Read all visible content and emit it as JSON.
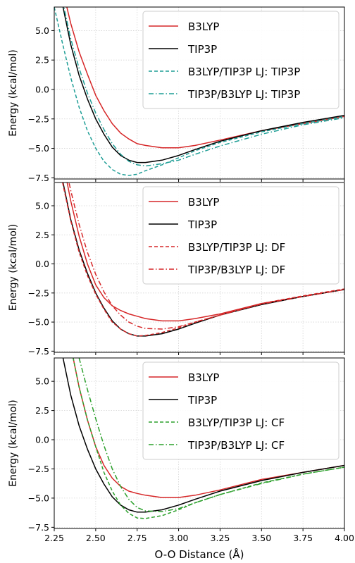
{
  "chart_data": [
    {
      "type": "line",
      "ylabel": "Energy (kcal/mol)",
      "xlabel": "",
      "xlim": [
        2.25,
        4.0
      ],
      "ylim": [
        -7.6,
        7.0
      ],
      "grid": true,
      "legend_position": "top-right",
      "yticks": [
        -7.5,
        -5.0,
        -2.5,
        0.0,
        2.5,
        5.0
      ],
      "ytick_labels": [
        "−7.5",
        "−5.0",
        "−2.5",
        "0.0",
        "2.5",
        "5.0"
      ],
      "series": [
        {
          "name": "B3LYP",
          "color": "#d62728",
          "dash": "solid",
          "x": [
            2.3,
            2.35,
            2.4,
            2.45,
            2.5,
            2.55,
            2.6,
            2.65,
            2.7,
            2.75,
            2.8,
            2.9,
            3.0,
            3.1,
            3.25,
            3.5,
            3.75,
            4.0
          ],
          "y": [
            8.5,
            5.6,
            3.2,
            1.3,
            -0.5,
            -1.8,
            -2.9,
            -3.7,
            -4.2,
            -4.6,
            -4.75,
            -4.95,
            -4.95,
            -4.75,
            -4.3,
            -3.5,
            -2.9,
            -2.3
          ]
        },
        {
          "name": "TIP3P",
          "color": "#000000",
          "dash": "solid",
          "x": [
            2.3,
            2.35,
            2.4,
            2.45,
            2.5,
            2.55,
            2.6,
            2.65,
            2.7,
            2.75,
            2.8,
            2.9,
            3.0,
            3.1,
            3.25,
            3.5,
            3.75,
            4.0
          ],
          "y": [
            7.2,
            3.8,
            1.2,
            -0.8,
            -2.5,
            -3.8,
            -4.9,
            -5.6,
            -6.0,
            -6.2,
            -6.2,
            -6.0,
            -5.6,
            -5.1,
            -4.4,
            -3.5,
            -2.8,
            -2.2
          ]
        },
        {
          "name": "B3LYP/TIP3P LJ: TIP3P",
          "color": "#1f9e96",
          "dash": "dashed",
          "x": [
            2.25,
            2.3,
            2.35,
            2.4,
            2.45,
            2.5,
            2.55,
            2.6,
            2.65,
            2.7,
            2.75,
            2.8,
            2.9,
            3.0,
            3.1,
            3.25,
            3.5,
            3.75,
            4.0
          ],
          "y": [
            7.0,
            3.9,
            1.0,
            -1.5,
            -3.5,
            -5.0,
            -6.1,
            -6.8,
            -7.2,
            -7.3,
            -7.2,
            -6.9,
            -6.4,
            -5.8,
            -5.2,
            -4.5,
            -3.6,
            -2.9,
            -2.3
          ]
        },
        {
          "name": "TIP3P/B3LYP LJ: TIP3P",
          "color": "#1f9e96",
          "dash": "dashdot",
          "x": [
            2.3,
            2.35,
            2.4,
            2.45,
            2.5,
            2.55,
            2.6,
            2.65,
            2.7,
            2.75,
            2.8,
            2.9,
            3.0,
            3.1,
            3.25,
            3.5,
            3.75,
            4.0
          ],
          "y": [
            7.5,
            4.3,
            1.8,
            -0.3,
            -2.0,
            -3.4,
            -4.6,
            -5.5,
            -6.1,
            -6.4,
            -6.5,
            -6.3,
            -6.0,
            -5.5,
            -4.8,
            -3.8,
            -3.0,
            -2.4
          ]
        }
      ]
    },
    {
      "type": "line",
      "ylabel": "Energy (kcal/mol)",
      "xlabel": "",
      "xlim": [
        2.25,
        4.0
      ],
      "ylim": [
        -7.6,
        7.0
      ],
      "grid": true,
      "legend_position": "top-right",
      "yticks": [
        -7.5,
        -5.0,
        -2.5,
        0.0,
        2.5,
        5.0
      ],
      "ytick_labels": [
        "−7.5",
        "−5.0",
        "−2.5",
        "0.0",
        "2.5",
        "5.0"
      ],
      "series": [
        {
          "name": "B3LYP",
          "color": "#d62728",
          "dash": "solid",
          "x": [
            2.3,
            2.35,
            2.4,
            2.45,
            2.5,
            2.55,
            2.6,
            2.65,
            2.7,
            2.75,
            2.8,
            2.9,
            3.0,
            3.1,
            3.25,
            3.5,
            3.75,
            4.0
          ],
          "y": [
            9.0,
            5.4,
            2.4,
            0.0,
            -1.8,
            -2.9,
            -3.6,
            -4.0,
            -4.3,
            -4.5,
            -4.7,
            -4.9,
            -4.9,
            -4.7,
            -4.3,
            -3.4,
            -2.8,
            -2.2
          ]
        },
        {
          "name": "TIP3P",
          "color": "#000000",
          "dash": "solid",
          "x": [
            2.3,
            2.35,
            2.4,
            2.45,
            2.5,
            2.55,
            2.6,
            2.65,
            2.7,
            2.75,
            2.8,
            2.9,
            3.0,
            3.1,
            3.25,
            3.5,
            3.75,
            4.0
          ],
          "y": [
            7.2,
            3.8,
            1.2,
            -0.8,
            -2.5,
            -3.8,
            -4.9,
            -5.6,
            -6.0,
            -6.2,
            -6.2,
            -6.0,
            -5.6,
            -5.1,
            -4.4,
            -3.5,
            -2.8,
            -2.2
          ]
        },
        {
          "name": "B3LYP/TIP3P LJ: DF",
          "color": "#d62728",
          "dash": "dashed",
          "x": [
            2.3,
            2.35,
            2.4,
            2.45,
            2.5,
            2.55,
            2.6,
            2.65,
            2.7,
            2.75,
            2.8,
            2.9,
            3.0,
            3.1,
            3.25,
            3.5,
            3.75,
            4.0
          ],
          "y": [
            7.0,
            3.7,
            1.0,
            -1.0,
            -2.6,
            -3.9,
            -5.0,
            -5.6,
            -6.0,
            -6.2,
            -6.15,
            -5.9,
            -5.5,
            -5.0,
            -4.4,
            -3.4,
            -2.75,
            -2.15
          ]
        },
        {
          "name": "TIP3P/B3LYP LJ: DF",
          "color": "#d62728",
          "dash": "dashdot",
          "x": [
            2.3,
            2.35,
            2.4,
            2.45,
            2.5,
            2.55,
            2.6,
            2.65,
            2.7,
            2.75,
            2.8,
            2.9,
            3.0,
            3.1,
            3.25,
            3.5,
            3.75,
            4.0
          ],
          "y": [
            9.5,
            6.3,
            3.4,
            1.0,
            -0.9,
            -2.4,
            -3.6,
            -4.4,
            -5.0,
            -5.35,
            -5.55,
            -5.6,
            -5.4,
            -5.0,
            -4.4,
            -3.45,
            -2.8,
            -2.2
          ]
        }
      ]
    },
    {
      "type": "line",
      "ylabel": "Energy (kcal/mol)",
      "xlabel": "O-O Distance (Å)",
      "xlim": [
        2.25,
        4.0
      ],
      "ylim": [
        -7.6,
        7.0
      ],
      "grid": true,
      "legend_position": "top-right",
      "yticks": [
        -7.5,
        -5.0,
        -2.5,
        0.0,
        2.5,
        5.0
      ],
      "ytick_labels": [
        "−7.5",
        "−5.0",
        "−2.5",
        "0.0",
        "2.5",
        "5.0"
      ],
      "xticks": [
        2.25,
        2.5,
        2.75,
        3.0,
        3.25,
        3.5,
        3.75,
        4.0
      ],
      "xtick_labels": [
        "2.25",
        "2.50",
        "2.75",
        "3.00",
        "3.25",
        "3.50",
        "3.75",
        "4.00"
      ],
      "series": [
        {
          "name": "B3LYP",
          "color": "#d62728",
          "dash": "solid",
          "x": [
            2.35,
            2.4,
            2.45,
            2.5,
            2.55,
            2.6,
            2.65,
            2.7,
            2.75,
            2.8,
            2.9,
            3.0,
            3.1,
            3.25,
            3.5,
            3.75,
            4.0
          ],
          "y": [
            8.0,
            4.5,
            1.7,
            -0.6,
            -2.2,
            -3.3,
            -4.0,
            -4.4,
            -4.6,
            -4.75,
            -4.95,
            -4.95,
            -4.75,
            -4.3,
            -3.4,
            -2.8,
            -2.2
          ]
        },
        {
          "name": "TIP3P",
          "color": "#000000",
          "dash": "solid",
          "x": [
            2.3,
            2.35,
            2.4,
            2.45,
            2.5,
            2.55,
            2.6,
            2.65,
            2.7,
            2.75,
            2.8,
            2.9,
            3.0,
            3.1,
            3.25,
            3.5,
            3.75,
            4.0
          ],
          "y": [
            7.2,
            3.8,
            1.2,
            -0.8,
            -2.5,
            -3.8,
            -4.9,
            -5.6,
            -6.0,
            -6.2,
            -6.2,
            -6.0,
            -5.6,
            -5.1,
            -4.4,
            -3.5,
            -2.8,
            -2.2
          ]
        },
        {
          "name": "B3LYP/TIP3P LJ: CF",
          "color": "#2ca02c",
          "dash": "dashed",
          "x": [
            2.35,
            2.4,
            2.45,
            2.5,
            2.55,
            2.6,
            2.65,
            2.7,
            2.75,
            2.8,
            2.9,
            3.0,
            3.1,
            3.25,
            3.5,
            3.75,
            4.0
          ],
          "y": [
            8.0,
            4.5,
            1.7,
            -0.6,
            -2.8,
            -4.4,
            -5.6,
            -6.3,
            -6.7,
            -6.75,
            -6.5,
            -6.0,
            -5.4,
            -4.7,
            -3.7,
            -2.95,
            -2.35
          ]
        },
        {
          "name": "TIP3P/B3LYP LJ: CF",
          "color": "#2ca02c",
          "dash": "dashdot",
          "x": [
            2.4,
            2.45,
            2.5,
            2.55,
            2.6,
            2.65,
            2.7,
            2.75,
            2.8,
            2.9,
            3.0,
            3.1,
            3.25,
            3.5,
            3.75,
            4.0
          ],
          "y": [
            7.0,
            4.3,
            1.8,
            -0.5,
            -2.5,
            -4.0,
            -5.1,
            -5.8,
            -6.1,
            -6.15,
            -5.9,
            -5.4,
            -4.7,
            -3.75,
            -2.95,
            -2.35
          ]
        }
      ]
    }
  ]
}
